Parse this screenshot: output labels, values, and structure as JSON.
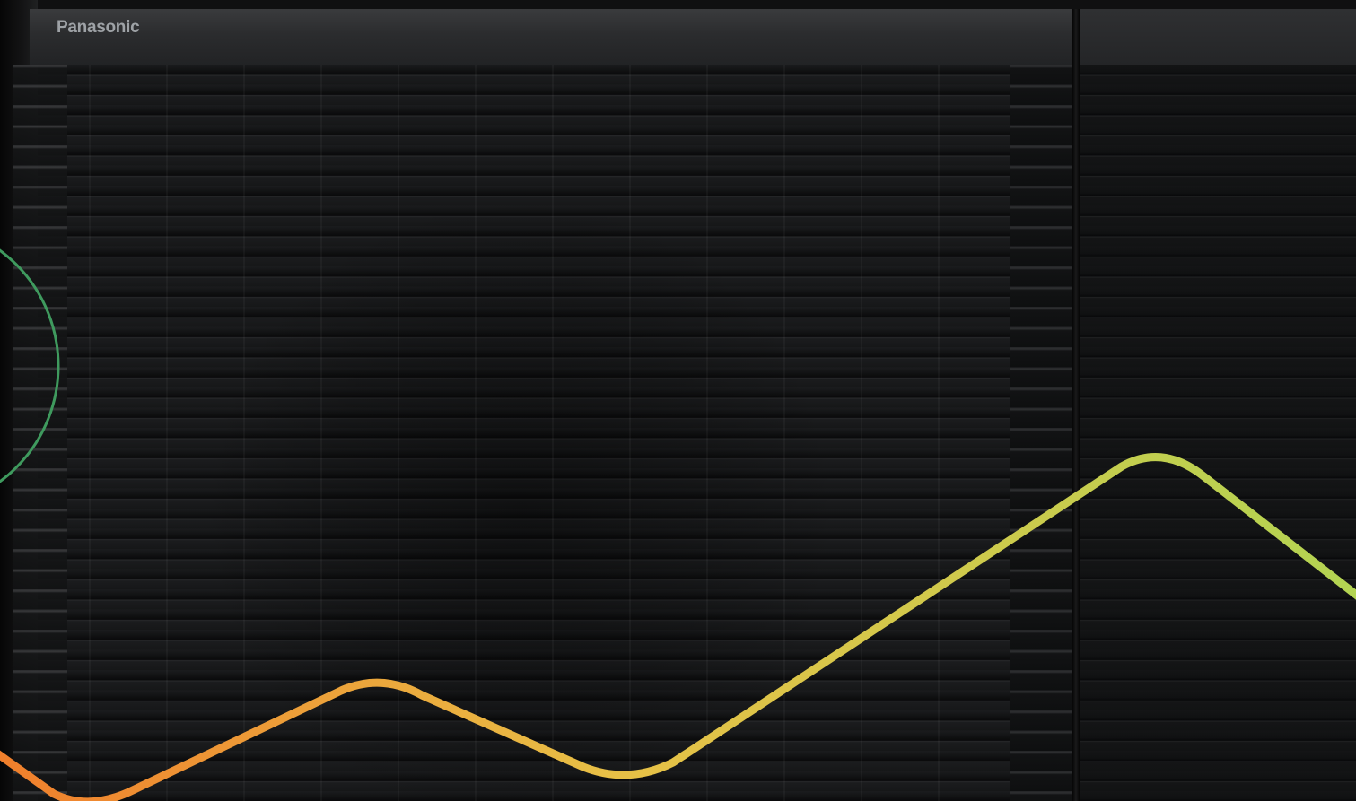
{
  "brand": {
    "logo_text": "Panasonic"
  },
  "colors": {
    "unit_body": "#1b1c1e",
    "brand_text": "#9ea2a6",
    "circle_stroke": "#3f9a5e",
    "wave_start": "#f07f2c",
    "wave_mid": "#e8c046",
    "wave_end": "#b3d452"
  },
  "graphics": {
    "decorative_circle": "green-outline-ring",
    "wave_line": "orange-to-lime-gradient-wave"
  }
}
